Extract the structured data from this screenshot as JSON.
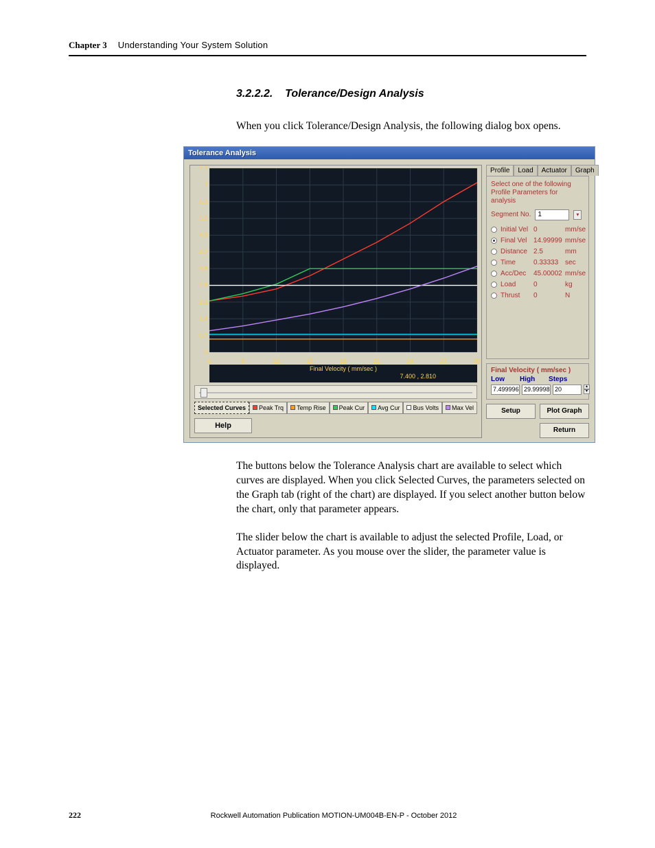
{
  "header": {
    "chapter_label": "Chapter 3",
    "chapter_title": "Understanding Your System Solution"
  },
  "section": {
    "number": "3.2.2.2.",
    "title": "Tolerance/Design Analysis"
  },
  "intro_text": "When you click Tolerance/Design Analysis, the following dialog box opens.",
  "dialog": {
    "title": "Tolerance Analysis",
    "chart": {
      "type": "line",
      "background_color": "#111a24",
      "grid_color": "#2a3a4a",
      "axis_label_color": "#ffd24d",
      "xlabel": "Final Velocity ( mm/sec )",
      "coord_readout": "7.400 , 2.810",
      "xlim": [
        6,
        30
      ],
      "ylim": [
        0,
        7.7
      ],
      "xticks": [
        6,
        9,
        12,
        15,
        18,
        21,
        24,
        27,
        30
      ],
      "yticks": [
        0,
        0.7,
        1.4,
        2.1,
        2.8,
        3.5,
        4.2,
        4.9,
        5.6,
        6.3,
        7,
        7.7
      ],
      "series": [
        {
          "name": "peak_trq",
          "color": "#ff3b30",
          "points": [
            [
              6,
              2.15
            ],
            [
              9,
              2.35
            ],
            [
              12,
              2.65
            ],
            [
              15,
              3.2
            ],
            [
              18,
              3.9
            ],
            [
              21,
              4.6
            ],
            [
              24,
              5.4
            ],
            [
              27,
              6.3
            ],
            [
              30,
              7.1
            ]
          ]
        },
        {
          "name": "temp_rise",
          "color": "#ff9f0a",
          "points": [
            [
              6,
              0.55
            ],
            [
              9,
              0.55
            ],
            [
              12,
              0.55
            ],
            [
              15,
              0.55
            ],
            [
              18,
              0.55
            ],
            [
              21,
              0.55
            ],
            [
              24,
              0.55
            ],
            [
              27,
              0.55
            ],
            [
              30,
              0.55
            ]
          ]
        },
        {
          "name": "peak_cur",
          "color": "#34c759",
          "points": [
            [
              6,
              2.15
            ],
            [
              9,
              2.45
            ],
            [
              12,
              2.85
            ],
            [
              15,
              3.5
            ],
            [
              18,
              3.5
            ],
            [
              21,
              3.5
            ],
            [
              24,
              3.5
            ],
            [
              27,
              3.5
            ],
            [
              30,
              3.5
            ]
          ]
        },
        {
          "name": "avg_cur",
          "color": "#00e5ff",
          "points": [
            [
              6,
              0.75
            ],
            [
              9,
              0.75
            ],
            [
              12,
              0.75
            ],
            [
              15,
              0.75
            ],
            [
              18,
              0.75
            ],
            [
              21,
              0.75
            ],
            [
              24,
              0.75
            ],
            [
              27,
              0.75
            ],
            [
              30,
              0.75
            ]
          ]
        },
        {
          "name": "bus_volts",
          "color": "#ffffff",
          "points": [
            [
              6,
              2.8
            ],
            [
              9,
              2.8
            ],
            [
              12,
              2.8
            ],
            [
              15,
              2.8
            ],
            [
              18,
              2.8
            ],
            [
              21,
              2.8
            ],
            [
              24,
              2.8
            ],
            [
              27,
              2.8
            ],
            [
              30,
              2.8
            ]
          ]
        },
        {
          "name": "max_vel",
          "color": "#c084fc",
          "points": [
            [
              6,
              0.9
            ],
            [
              9,
              1.1
            ],
            [
              12,
              1.35
            ],
            [
              15,
              1.6
            ],
            [
              18,
              1.9
            ],
            [
              21,
              2.25
            ],
            [
              24,
              2.65
            ],
            [
              27,
              3.1
            ],
            [
              30,
              3.6
            ]
          ]
        }
      ]
    },
    "curve_buttons": {
      "selected": "Selected Curves",
      "items": [
        {
          "label": "Peak Trq",
          "color": "#ff3b30"
        },
        {
          "label": "Temp Rise",
          "color": "#ff9f0a"
        },
        {
          "label": "Peak Cur",
          "color": "#34c759"
        },
        {
          "label": "Avg Cur",
          "color": "#00e5ff"
        },
        {
          "label": "Bus Volts",
          "color": "#ffffff"
        },
        {
          "label": "Max Vel",
          "color": "#c084fc"
        }
      ]
    },
    "help_label": "Help",
    "tabs": {
      "items": [
        "Profile",
        "Load",
        "Actuator",
        "Graph"
      ],
      "active": 0
    },
    "profile_tab": {
      "desc": "Select one of the following Profile Parameters for analysis",
      "segment_label": "Segment No.",
      "segment_value": "1",
      "params": [
        {
          "key": "initial_vel",
          "label": "Initial Vel",
          "value": "0",
          "unit": "mm/se",
          "disabled": true,
          "selected": false
        },
        {
          "key": "final_vel",
          "label": "Final Vel",
          "value": "14.99999",
          "unit": "mm/se",
          "disabled": false,
          "selected": true
        },
        {
          "key": "distance",
          "label": "Distance",
          "value": "2.5",
          "unit": "mm",
          "disabled": true,
          "selected": false
        },
        {
          "key": "time",
          "label": "Time",
          "value": "0.33333",
          "unit": "sec",
          "disabled": false,
          "selected": false
        },
        {
          "key": "acc_dec",
          "label": "Acc/Dec",
          "value": "45.00002",
          "unit": "mm/se",
          "disabled": true,
          "selected": false
        },
        {
          "key": "load",
          "label": "Load",
          "value": "0",
          "unit": "kg",
          "disabled": false,
          "selected": false
        },
        {
          "key": "thrust",
          "label": "Thrust",
          "value": "0",
          "unit": "N",
          "disabled": false,
          "selected": false
        }
      ]
    },
    "final_velocity_group": {
      "title": "Final Velocity ( mm/sec )",
      "headers": {
        "low": "Low",
        "high": "High",
        "steps": "Steps"
      },
      "low": "7.499996",
      "high": "29.99998",
      "steps": "20"
    },
    "setup_label": "Setup",
    "plot_label": "Plot Graph",
    "return_label": "Return"
  },
  "para1": "The buttons below the Tolerance Analysis chart are available to select which curves are displayed. When you click Selected Curves, the parameters selected on the Graph tab (right of the chart) are displayed. If you select another button below the chart, only that parameter appears.",
  "para2": "The slider below the chart is available to adjust the selected Profile, Load, or Actuator parameter. As you mouse over the slider, the parameter value is displayed.",
  "footer": {
    "page": "222",
    "publication": "Rockwell Automation Publication MOTION-UM004B-EN-P - October 2012"
  }
}
